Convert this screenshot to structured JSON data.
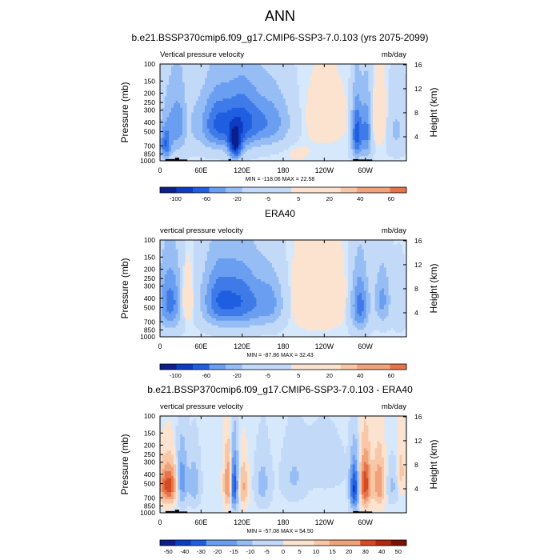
{
  "figure": {
    "title": "ANN"
  },
  "colors": {
    "contour_neg": [
      "#0a1f8c",
      "#0d3cc4",
      "#1f5ee0",
      "#3f7be8",
      "#6a9ef0",
      "#97bdf5",
      "#c3d9f8"
    ],
    "contour_zero": "#d6e8fc",
    "contour_pos": [
      "#fbe3cf",
      "#f7c7a8",
      "#f0a27a",
      "#e6744a",
      "#d44a22",
      "#b02a0e",
      "#7a1206"
    ],
    "topography": "#000000"
  },
  "chart_data": [
    {
      "type": "heatmap",
      "title": "b.e21.BSSP370cmip6.f09_g17.CMIP6-SSP3-7.0.103 (yrs 2075-2099)",
      "left_label": "Vertical pressure velocity",
      "right_label": "mb/day",
      "ylabel": "Pressure (mb)",
      "y2label": "Height (km)",
      "x_ticks": [
        "0",
        "60E",
        "120E",
        "180",
        "120W",
        "60W"
      ],
      "x_tick_values": [
        0,
        60,
        120,
        180,
        240,
        300
      ],
      "xlim": [
        0,
        360
      ],
      "y_ticks": [
        "100",
        "150",
        "200",
        "250",
        "300",
        "400",
        "500",
        "700",
        "850",
        "1000"
      ],
      "y_tick_values": [
        100,
        150,
        200,
        250,
        300,
        400,
        500,
        700,
        850,
        1000
      ],
      "ylim": [
        1000,
        100
      ],
      "y2_ticks": [
        "16",
        "12",
        "8",
        "4"
      ],
      "y2_tick_values": [
        16,
        12,
        8,
        4
      ],
      "stats": "MIN = -118.06  MAX = 22.58",
      "colorbar_labels": [
        "-100",
        "-60",
        "-20",
        "-5",
        "5",
        "20",
        "40",
        "60"
      ],
      "colorbar_levels": [
        -120,
        -100,
        -80,
        -60,
        -40,
        -20,
        -10,
        -5,
        0,
        5,
        10,
        20,
        30,
        40,
        50,
        60
      ],
      "topography": [
        [
          8,
          22,
          1000,
          960
        ],
        [
          22,
          28,
          1000,
          930
        ],
        [
          28,
          40,
          1000,
          970
        ],
        [
          100,
          104,
          1000,
          960
        ],
        [
          282,
          290,
          1000,
          960
        ],
        [
          290,
          310,
          1000,
          970
        ]
      ],
      "features": [
        {
          "lon": 25,
          "lon_width": 26,
          "p_center": 420,
          "p_half": 430,
          "value": -45
        },
        {
          "lon": 8,
          "lon_width": 10,
          "p_center": 700,
          "p_half": 300,
          "value": -60
        },
        {
          "lon": 40,
          "lon_width": 9,
          "p_center": 420,
          "p_half": 380,
          "value": 14
        },
        {
          "lon": 85,
          "lon_width": 34,
          "p_center": 420,
          "p_half": 360,
          "value": -70
        },
        {
          "lon": 110,
          "lon_width": 12,
          "p_center": 700,
          "p_half": 300,
          "value": -85
        },
        {
          "lon": 122,
          "lon_width": 30,
          "p_center": 400,
          "p_half": 380,
          "value": -60
        },
        {
          "lon": 160,
          "lon_width": 38,
          "p_center": 400,
          "p_half": 330,
          "value": -45
        },
        {
          "lon": 240,
          "lon_width": 42,
          "p_center": 360,
          "p_half": 320,
          "value": 7
        },
        {
          "lon": 200,
          "lon_width": 26,
          "p_center": 800,
          "p_half": 220,
          "value": 4
        },
        {
          "lon": 288,
          "lon_width": 10,
          "p_center": 520,
          "p_half": 440,
          "value": -80
        },
        {
          "lon": 302,
          "lon_width": 9,
          "p_center": 500,
          "p_half": 450,
          "value": -55
        },
        {
          "lon": 320,
          "lon_width": 16,
          "p_center": 380,
          "p_half": 300,
          "value": 14
        },
        {
          "lon": 345,
          "lon_width": 18,
          "p_center": 480,
          "p_half": 380,
          "value": -20
        }
      ]
    },
    {
      "type": "heatmap",
      "title": "ERA40",
      "left_label": "vertical pressure velocity",
      "right_label": "mb/day",
      "ylabel": "Pressure (mb)",
      "y2label": "Height (km)",
      "x_ticks": [
        "0",
        "60E",
        "120E",
        "180",
        "120W",
        "60W"
      ],
      "x_tick_values": [
        0,
        60,
        120,
        180,
        240,
        300
      ],
      "xlim": [
        0,
        360
      ],
      "y_ticks": [
        "100",
        "150",
        "200",
        "250",
        "300",
        "400",
        "500",
        "700",
        "850",
        "1000"
      ],
      "y_tick_values": [
        100,
        150,
        200,
        250,
        300,
        400,
        500,
        700,
        850,
        1000
      ],
      "ylim": [
        1000,
        100
      ],
      "y2_ticks": [
        "16",
        "12",
        "8",
        "4"
      ],
      "y2_tick_values": [
        16,
        12,
        8,
        4
      ],
      "stats": "MIN = -87.86  MAX = 32.43",
      "colorbar_labels": [
        "-100",
        "-60",
        "-20",
        "-5",
        "5",
        "20",
        "40",
        "60"
      ],
      "colorbar_levels": [
        -120,
        -100,
        -80,
        -60,
        -40,
        -20,
        -10,
        -5,
        0,
        5,
        10,
        20,
        30,
        40,
        50,
        60
      ],
      "topography": [],
      "features": [
        {
          "lon": 15,
          "lon_width": 22,
          "p_center": 440,
          "p_half": 420,
          "value": -60
        },
        {
          "lon": 38,
          "lon_width": 12,
          "p_center": 420,
          "p_half": 300,
          "value": 25
        },
        {
          "lon": 85,
          "lon_width": 30,
          "p_center": 420,
          "p_half": 380,
          "value": -60
        },
        {
          "lon": 120,
          "lon_width": 34,
          "p_center": 430,
          "p_half": 400,
          "value": -60
        },
        {
          "lon": 160,
          "lon_width": 28,
          "p_center": 450,
          "p_half": 350,
          "value": -40
        },
        {
          "lon": 230,
          "lon_width": 48,
          "p_center": 420,
          "p_half": 380,
          "value": 16
        },
        {
          "lon": 292,
          "lon_width": 16,
          "p_center": 480,
          "p_half": 420,
          "value": -60
        },
        {
          "lon": 325,
          "lon_width": 14,
          "p_center": 420,
          "p_half": 340,
          "value": -40
        },
        {
          "lon": 350,
          "lon_width": 12,
          "p_center": 500,
          "p_half": 350,
          "value": -15
        }
      ]
    },
    {
      "type": "heatmap",
      "title": "b.e21.BSSP370cmip6.f09_g17.CMIP6-SSP3-7.0.103 - ERA40",
      "left_label": "vertical pressure velocity",
      "right_label": "mb/day",
      "ylabel": "Pressure (mb)",
      "y2label": "Height (km)",
      "x_ticks": [
        "0",
        "60E",
        "120E",
        "180",
        "120W",
        "60W"
      ],
      "x_tick_values": [
        0,
        60,
        120,
        180,
        240,
        300
      ],
      "xlim": [
        0,
        360
      ],
      "y_ticks": [
        "100",
        "150",
        "200",
        "250",
        "300",
        "400",
        "500",
        "700",
        "850",
        "1000"
      ],
      "y_tick_values": [
        100,
        150,
        200,
        250,
        300,
        400,
        500,
        700,
        850,
        1000
      ],
      "ylim": [
        1000,
        100
      ],
      "y2_ticks": [
        "16",
        "12",
        "8",
        "4"
      ],
      "y2_tick_values": [
        16,
        12,
        8,
        4
      ],
      "stats": "MIN = -57.08  MAX = 54.50",
      "colorbar_labels": [
        "-50",
        "-40",
        "-30",
        "-20",
        "-15",
        "-10",
        "-5",
        "0",
        "5",
        "10",
        "15",
        "20",
        "30",
        "40",
        "50"
      ],
      "colorbar_levels": [
        -60,
        -50,
        -40,
        -30,
        -20,
        -15,
        -10,
        -5,
        0,
        5,
        10,
        15,
        20,
        30,
        40,
        50,
        60
      ],
      "topography": [
        [
          8,
          22,
          1000,
          960
        ],
        [
          22,
          28,
          1000,
          930
        ],
        [
          28,
          40,
          1000,
          970
        ],
        [
          100,
          104,
          1000,
          960
        ],
        [
          282,
          290,
          1000,
          960
        ],
        [
          290,
          310,
          1000,
          970
        ]
      ],
      "features": [
        {
          "lon": 12,
          "lon_width": 16,
          "p_center": 520,
          "p_half": 300,
          "value": 40
        },
        {
          "lon": 32,
          "lon_width": 10,
          "p_center": 460,
          "p_half": 380,
          "value": -25
        },
        {
          "lon": 50,
          "lon_width": 10,
          "p_center": 500,
          "p_half": 350,
          "value": -15
        },
        {
          "lon": 100,
          "lon_width": 8,
          "p_center": 500,
          "p_half": 400,
          "value": 30
        },
        {
          "lon": 108,
          "lon_width": 7,
          "p_center": 520,
          "p_half": 420,
          "value": -45
        },
        {
          "lon": 122,
          "lon_width": 8,
          "p_center": 540,
          "p_half": 350,
          "value": 18
        },
        {
          "lon": 150,
          "lon_width": 14,
          "p_center": 500,
          "p_half": 380,
          "value": -12
        },
        {
          "lon": 195,
          "lon_width": 22,
          "p_center": 430,
          "p_half": 350,
          "value": -9
        },
        {
          "lon": 240,
          "lon_width": 38,
          "p_center": 330,
          "p_half": 280,
          "value": -6
        },
        {
          "lon": 284,
          "lon_width": 8,
          "p_center": 560,
          "p_half": 400,
          "value": -45
        },
        {
          "lon": 300,
          "lon_width": 10,
          "p_center": 500,
          "p_half": 400,
          "value": 40
        },
        {
          "lon": 320,
          "lon_width": 10,
          "p_center": 500,
          "p_half": 380,
          "value": 26
        },
        {
          "lon": 340,
          "lon_width": 12,
          "p_center": 520,
          "p_half": 300,
          "value": -10
        },
        {
          "lon": 352,
          "lon_width": 8,
          "p_center": 380,
          "p_half": 300,
          "value": 12
        }
      ]
    }
  ]
}
